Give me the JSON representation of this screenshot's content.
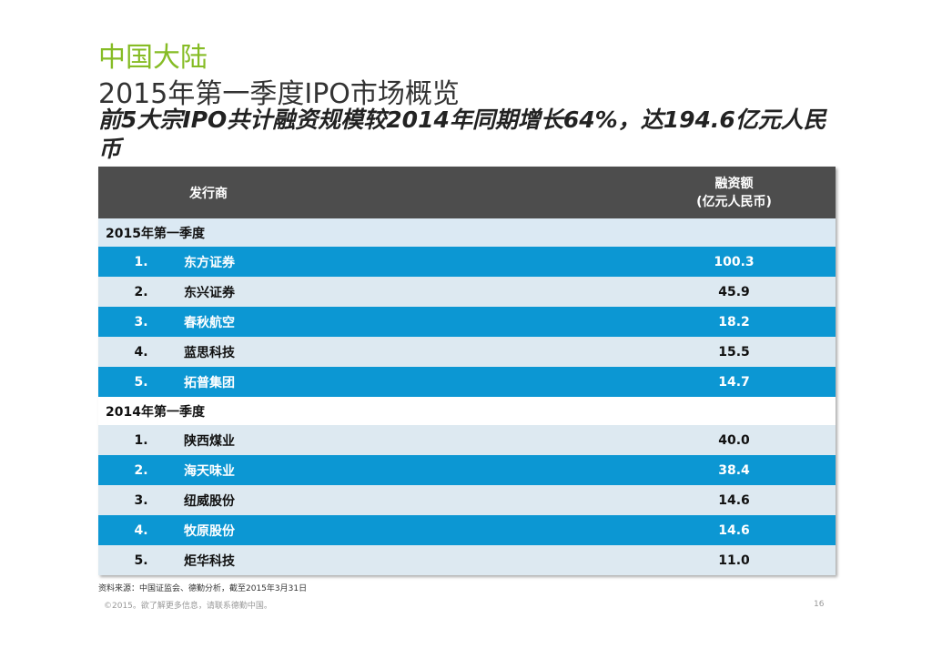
{
  "header": {
    "region": "中国大陆",
    "title": "2015年第一季度IPO市场概览",
    "subtitle": "前5大宗IPO共计融资规模较2014年同期增长64%，达194.6亿元人民币"
  },
  "table": {
    "columns": {
      "issuer": "发行商",
      "amount": "融资额",
      "unit": "(亿元人民币)"
    },
    "sections": [
      {
        "label": "2015年第一季度",
        "rows": [
          {
            "rank": "1.",
            "name": "东方证券",
            "amount": "100.3"
          },
          {
            "rank": "2.",
            "name": "东兴证券",
            "amount": "45.9"
          },
          {
            "rank": "3.",
            "name": "春秋航空",
            "amount": "18.2"
          },
          {
            "rank": "4.",
            "name": "蓝思科技",
            "amount": "15.5"
          },
          {
            "rank": "5.",
            "name": "拓普集团",
            "amount": "14.7"
          }
        ]
      },
      {
        "label": "2014年第一季度",
        "rows": [
          {
            "rank": "1.",
            "name": "陕西煤业",
            "amount": "40.0"
          },
          {
            "rank": "2.",
            "name": "海天味业",
            "amount": "38.4"
          },
          {
            "rank": "3.",
            "name": "纽威股份",
            "amount": "14.6"
          },
          {
            "rank": "4.",
            "name": "牧原股份",
            "amount": "14.6"
          },
          {
            "rank": "5.",
            "name": "炬华科技",
            "amount": "11.0"
          }
        ]
      }
    ]
  },
  "footer": {
    "source": "资料来源：中国证监会、德勤分析，截至2015年3月31日",
    "copyright": "©2015。欲了解更多信息，请联系德勤中国。",
    "page": "16"
  }
}
